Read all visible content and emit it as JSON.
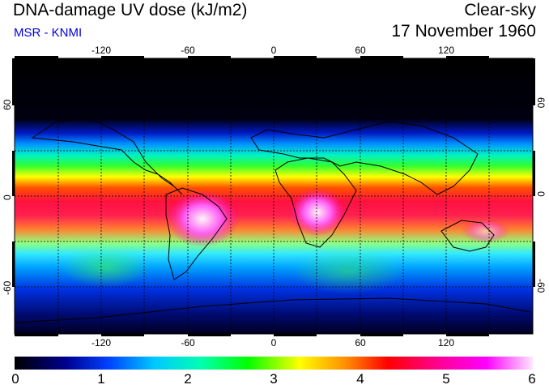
{
  "header": {
    "title": "DNA-damage UV dose (kJ/m2)",
    "source": "MSR - KNMI",
    "sky_condition": "Clear-sky",
    "date": "17 November 1960"
  },
  "map": {
    "longitude_labels": [
      "-120",
      "-60",
      "0",
      "60",
      "120"
    ],
    "latitude_labels_left": [
      "60",
      "0",
      "-60"
    ],
    "latitude_labels_right": [
      "60",
      "0",
      "-60"
    ],
    "gridlines": "dashed every 30 degrees",
    "projection": "equirectangular global"
  },
  "colorbar": {
    "tick_labels": [
      "0",
      "1",
      "2",
      "3",
      "4",
      "5",
      "6"
    ],
    "min": 0,
    "max": 6,
    "colors": [
      "#000000",
      "#0000c8",
      "#0096ff",
      "#00ffe6",
      "#00ff00",
      "#ffff00",
      "#ff8c00",
      "#ff0000",
      "#ff0096",
      "#ff00ff",
      "#ffe6ff"
    ]
  }
}
